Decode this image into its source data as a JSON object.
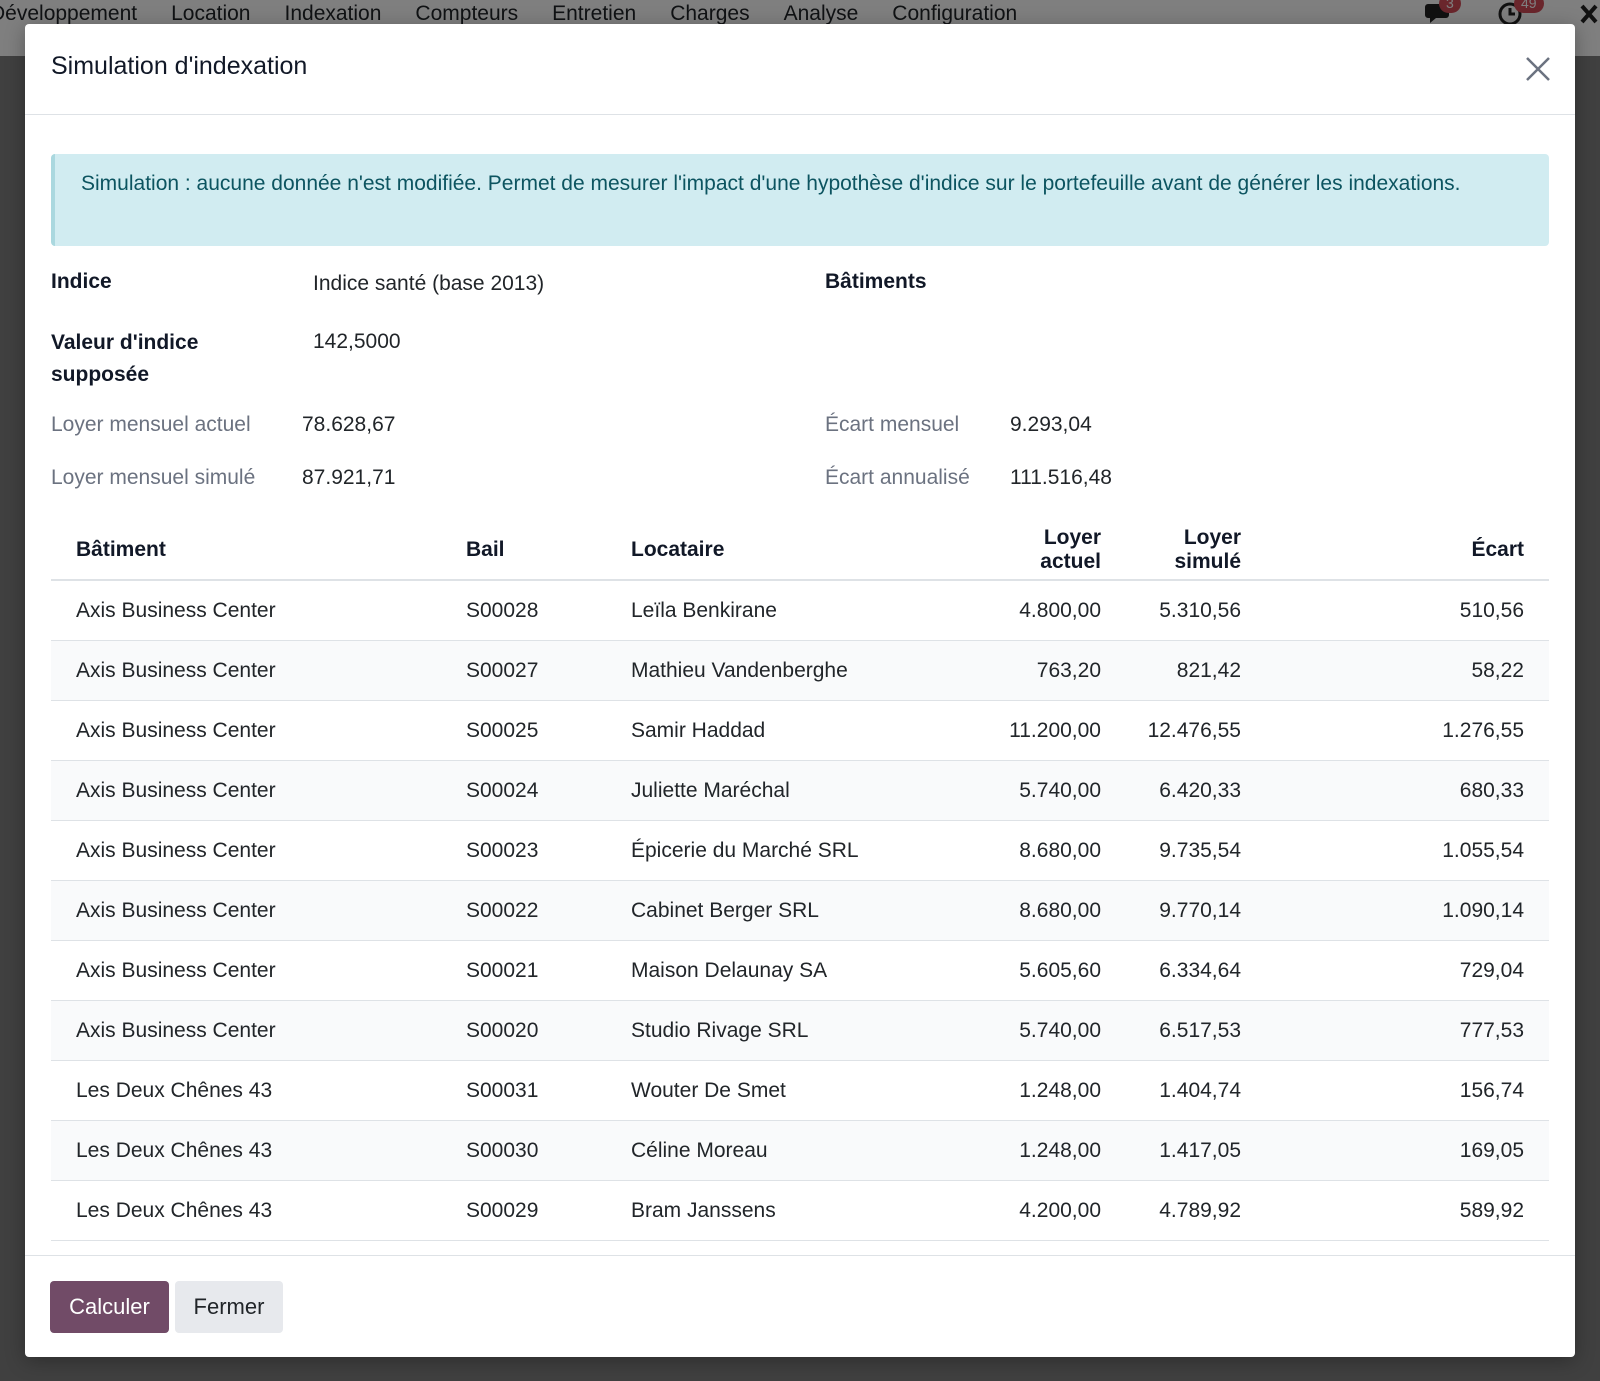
{
  "navbar": {
    "menu": [
      "Développement",
      "Location",
      "Indexation",
      "Compteurs",
      "Entretien",
      "Charges",
      "Analyse",
      "Configuration"
    ],
    "messages_badge": "3",
    "activities_badge": "49"
  },
  "dialog": {
    "title": "Simulation d'indexation",
    "alert": "Simulation : aucune donnée n'est modifiée. Permet de mesurer l'impact d'une hypothèse d'indice sur le portefeuille avant de générer les indexations.",
    "fields": {
      "indice_label": "Indice",
      "indice_value": "Indice santé (base 2013)",
      "batiments_label": "Bâtiments",
      "valeur_label": "Valeur d'indice supposée",
      "valeur_value": "142,5000",
      "loyer_actuel_label": "Loyer mensuel actuel",
      "loyer_actuel_value": "78.628,67",
      "loyer_simule_label": "Loyer mensuel simulé",
      "loyer_simule_value": "87.921,71",
      "ecart_mensuel_label": "Écart mensuel",
      "ecart_mensuel_value": "9.293,04",
      "ecart_annualise_label": "Écart annualisé",
      "ecart_annualise_value": "111.516,48"
    },
    "table": {
      "headers": [
        "Bâtiment",
        "Bail",
        "Locataire",
        "Loyer actuel",
        "Loyer simulé",
        "Écart"
      ],
      "rows": [
        [
          "Axis Business Center",
          "S00028",
          "Leïla Benkirane",
          "4.800,00",
          "5.310,56",
          "510,56"
        ],
        [
          "Axis Business Center",
          "S00027",
          "Mathieu Vandenberghe",
          "763,20",
          "821,42",
          "58,22"
        ],
        [
          "Axis Business Center",
          "S00025",
          "Samir Haddad",
          "11.200,00",
          "12.476,55",
          "1.276,55"
        ],
        [
          "Axis Business Center",
          "S00024",
          "Juliette Maréchal",
          "5.740,00",
          "6.420,33",
          "680,33"
        ],
        [
          "Axis Business Center",
          "S00023",
          "Épicerie du Marché SRL",
          "8.680,00",
          "9.735,54",
          "1.055,54"
        ],
        [
          "Axis Business Center",
          "S00022",
          "Cabinet Berger SRL",
          "8.680,00",
          "9.770,14",
          "1.090,14"
        ],
        [
          "Axis Business Center",
          "S00021",
          "Maison Delaunay SA",
          "5.605,60",
          "6.334,64",
          "729,04"
        ],
        [
          "Axis Business Center",
          "S00020",
          "Studio Rivage SRL",
          "5.740,00",
          "6.517,53",
          "777,53"
        ],
        [
          "Les Deux Chênes 43",
          "S00031",
          "Wouter De Smet",
          "1.248,00",
          "1.404,74",
          "156,74"
        ],
        [
          "Les Deux Chênes 43",
          "S00030",
          "Céline Moreau",
          "1.248,00",
          "1.417,05",
          "169,05"
        ],
        [
          "Les Deux Chênes 43",
          "S00029",
          "Bram Janssens",
          "4.200,00",
          "4.789,92",
          "589,92"
        ]
      ]
    },
    "buttons": {
      "calculer": "Calculer",
      "fermer": "Fermer"
    }
  },
  "colors": {
    "primary": "#714b67",
    "alert_bg": "#d1ecf1",
    "alert_text": "#0c5460",
    "badge": "#d44c59"
  }
}
